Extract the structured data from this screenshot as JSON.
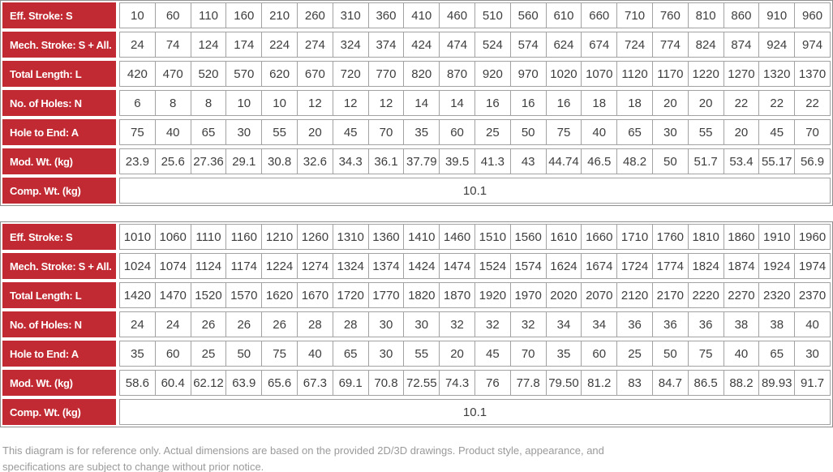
{
  "theme": {
    "header_bg": "#C12A32",
    "header_text": "#FFFFFF",
    "cell_border": "#A2A2A2",
    "outer_border": "#8F8F8F",
    "data_text": "#3E3E3E",
    "footer_text": "#9A9A9A"
  },
  "tables": [
    {
      "name": "spec-table-strokes-10-960",
      "rows": [
        {
          "label": "Eff. Stroke: S",
          "values": [
            "10",
            "60",
            "110",
            "160",
            "210",
            "260",
            "310",
            "360",
            "410",
            "460",
            "510",
            "560",
            "610",
            "660",
            "710",
            "760",
            "810",
            "860",
            "910",
            "960"
          ]
        },
        {
          "label": "Mech. Stroke: S + All.",
          "values": [
            "24",
            "74",
            "124",
            "174",
            "224",
            "274",
            "324",
            "374",
            "424",
            "474",
            "524",
            "574",
            "624",
            "674",
            "724",
            "774",
            "824",
            "874",
            "924",
            "974"
          ]
        },
        {
          "label": "Total Length: L",
          "values": [
            "420",
            "470",
            "520",
            "570",
            "620",
            "670",
            "720",
            "770",
            "820",
            "870",
            "920",
            "970",
            "1020",
            "1070",
            "1120",
            "1170",
            "1220",
            "1270",
            "1320",
            "1370"
          ]
        },
        {
          "label": "No. of Holes: N",
          "values": [
            "6",
            "8",
            "8",
            "10",
            "10",
            "12",
            "12",
            "12",
            "14",
            "14",
            "16",
            "16",
            "16",
            "18",
            "18",
            "20",
            "20",
            "22",
            "22",
            "22"
          ]
        },
        {
          "label": "Hole to End: A",
          "values": [
            "75",
            "40",
            "65",
            "30",
            "55",
            "20",
            "45",
            "70",
            "35",
            "60",
            "25",
            "50",
            "75",
            "40",
            "65",
            "30",
            "55",
            "20",
            "45",
            "70"
          ]
        },
        {
          "label": "Mod. Wt. (kg)",
          "values": [
            "23.9",
            "25.6",
            "27.36",
            "29.1",
            "30.8",
            "32.6",
            "34.3",
            "36.1",
            "37.79",
            "39.5",
            "41.3",
            "43",
            "44.74",
            "46.5",
            "48.2",
            "50",
            "51.7",
            "53.4",
            "55.17",
            "56.9"
          ]
        },
        {
          "label": "Comp. Wt. (kg)",
          "merged_value": "10.1"
        }
      ]
    },
    {
      "name": "spec-table-strokes-1010-1960",
      "rows": [
        {
          "label": "Eff. Stroke: S",
          "values": [
            "1010",
            "1060",
            "1110",
            "1160",
            "1210",
            "1260",
            "1310",
            "1360",
            "1410",
            "1460",
            "1510",
            "1560",
            "1610",
            "1660",
            "1710",
            "1760",
            "1810",
            "1860",
            "1910",
            "1960"
          ]
        },
        {
          "label": "Mech. Stroke: S + All.",
          "values": [
            "1024",
            "1074",
            "1124",
            "1174",
            "1224",
            "1274",
            "1324",
            "1374",
            "1424",
            "1474",
            "1524",
            "1574",
            "1624",
            "1674",
            "1724",
            "1774",
            "1824",
            "1874",
            "1924",
            "1974"
          ]
        },
        {
          "label": "Total Length: L",
          "values": [
            "1420",
            "1470",
            "1520",
            "1570",
            "1620",
            "1670",
            "1720",
            "1770",
            "1820",
            "1870",
            "1920",
            "1970",
            "2020",
            "2070",
            "2120",
            "2170",
            "2220",
            "2270",
            "2320",
            "2370"
          ]
        },
        {
          "label": "No. of Holes: N",
          "values": [
            "24",
            "24",
            "26",
            "26",
            "26",
            "28",
            "28",
            "30",
            "30",
            "32",
            "32",
            "32",
            "34",
            "34",
            "36",
            "36",
            "36",
            "38",
            "38",
            "40"
          ]
        },
        {
          "label": "Hole to End: A",
          "values": [
            "35",
            "60",
            "25",
            "50",
            "75",
            "40",
            "65",
            "30",
            "55",
            "20",
            "45",
            "70",
            "35",
            "60",
            "25",
            "50",
            "75",
            "40",
            "65",
            "30"
          ]
        },
        {
          "label": "Mod. Wt. (kg)",
          "values": [
            "58.6",
            "60.4",
            "62.12",
            "63.9",
            "65.6",
            "67.3",
            "69.1",
            "70.8",
            "72.55",
            "74.3",
            "76",
            "77.8",
            "79.50",
            "81.2",
            "83",
            "84.7",
            "86.5",
            "88.2",
            "89.93",
            "91.7"
          ]
        },
        {
          "label": "Comp. Wt. (kg)",
          "merged_value": "10.1"
        }
      ]
    }
  ],
  "footer": {
    "lines": [
      "This diagram is for reference only. Actual dimensions are based on the provided 2D/3D drawings. Product style, appearance, and",
      "specifications are subject to change without prior notice."
    ]
  }
}
